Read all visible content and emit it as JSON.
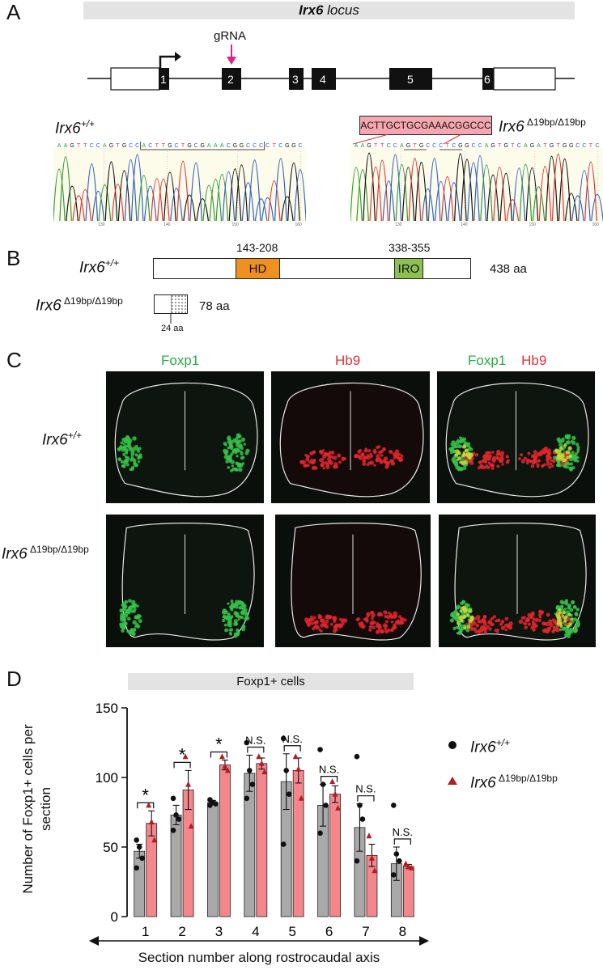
{
  "panels": {
    "a": "A",
    "b": "B",
    "c": "C",
    "d": "D"
  },
  "panel_a": {
    "banner_bold": "Irx6",
    "banner_rest": " locus",
    "grna_label": "gRNA",
    "exons": [
      "1",
      "2",
      "3",
      "4",
      "5",
      "6"
    ],
    "wt_label_main": "Irx6",
    "wt_label_sup": "+/+",
    "mut_label_main": "Irx6",
    "mut_label_sup": " Δ19bp/Δ19bp",
    "deleted_seq": "ACTTGCTGCGAAACGGCCC",
    "wt_seq": "AAGTTCCAGTGCCACTTGCTGCGAAACGGCCCCTCGGC",
    "mut_seq": "AAGTTCCAGTGCCCTCGGCCAGTGTCAGATGTGGCCTC",
    "wt_ticks": [
      "130",
      "140",
      "150",
      "160"
    ],
    "mut_ticks": [
      "130",
      "140",
      "150",
      "160"
    ]
  },
  "panel_b": {
    "wt_main": "Irx6",
    "wt_sup": "+/+",
    "mut_main": "Irx6",
    "mut_sup": " Δ19bp/Δ19bp",
    "hd_range": "143-208",
    "hd_label": "HD",
    "iro_range": "338-355",
    "iro_label": "IRO",
    "wt_length": "438 aa",
    "mut_length": "78 aa",
    "mut_frame": "24 aa",
    "colors": {
      "hd": "#f0901e",
      "iro": "#8cc152"
    }
  },
  "panel_c": {
    "col1": "Foxp1",
    "col2": "Hb9",
    "col3a": "Foxp1",
    "col3b": "Hb9",
    "row1_main": "Irx6",
    "row1_sup": "+/+",
    "row2_main": "Irx6",
    "row2_sup": " Δ19bp/Δ19bp"
  },
  "panel_d": {
    "legend_wt_main": "Irx6",
    "legend_wt_sup": "+/+",
    "legend_mut_main": "Irx6",
    "legend_mut_sup": " Δ19bp/Δ19bp",
    "axis_caption": "Section number along rostrocaudal axis"
  },
  "chart_data": {
    "type": "bar",
    "title": "Foxp1+ cells",
    "ylabel": "Number of Foxp1+ cells per section",
    "xlabel": "Section number along rostrocaudal axis",
    "categories": [
      "1",
      "2",
      "3",
      "4",
      "5",
      "6",
      "7",
      "8"
    ],
    "ylim": [
      0,
      150
    ],
    "yticks": [
      0,
      50,
      100,
      150
    ],
    "significance": [
      "*",
      "*",
      "*",
      "N.S.",
      "N.S.",
      "N.S.",
      "N.S.",
      "N.S."
    ],
    "series": [
      {
        "name": "Irx6+/+",
        "color": "#a9a9a9",
        "values": [
          47,
          73,
          82,
          103,
          97,
          80,
          64,
          38
        ],
        "errors": [
          5,
          7,
          1.5,
          13,
          20,
          15,
          17,
          12
        ],
        "points": [
          [
            55,
            50,
            42,
            35
          ],
          [
            85,
            73,
            70,
            62
          ],
          [
            84,
            82,
            81,
            80
          ],
          [
            125,
            105,
            95,
            85
          ],
          [
            128,
            105,
            88,
            52
          ],
          [
            120,
            95,
            80,
            60
          ],
          [
            115,
            80,
            70,
            40
          ],
          [
            80,
            45,
            40,
            30
          ]
        ]
      },
      {
        "name": "Irx6 Δ19bp/Δ19bp",
        "color": "#f3878c",
        "values": [
          67,
          91,
          109,
          110,
          105,
          88,
          44,
          36
        ],
        "errors": [
          9,
          14,
          3.5,
          4,
          9,
          6,
          8,
          1.5
        ],
        "points": [
          [
            80,
            68,
            55
          ],
          [
            115,
            95,
            65
          ],
          [
            115,
            108,
            105
          ],
          [
            115,
            110,
            104
          ],
          [
            115,
            106,
            85
          ],
          [
            97,
            88,
            78
          ],
          [
            58,
            42,
            33
          ],
          [
            38,
            36,
            35
          ]
        ]
      }
    ]
  }
}
